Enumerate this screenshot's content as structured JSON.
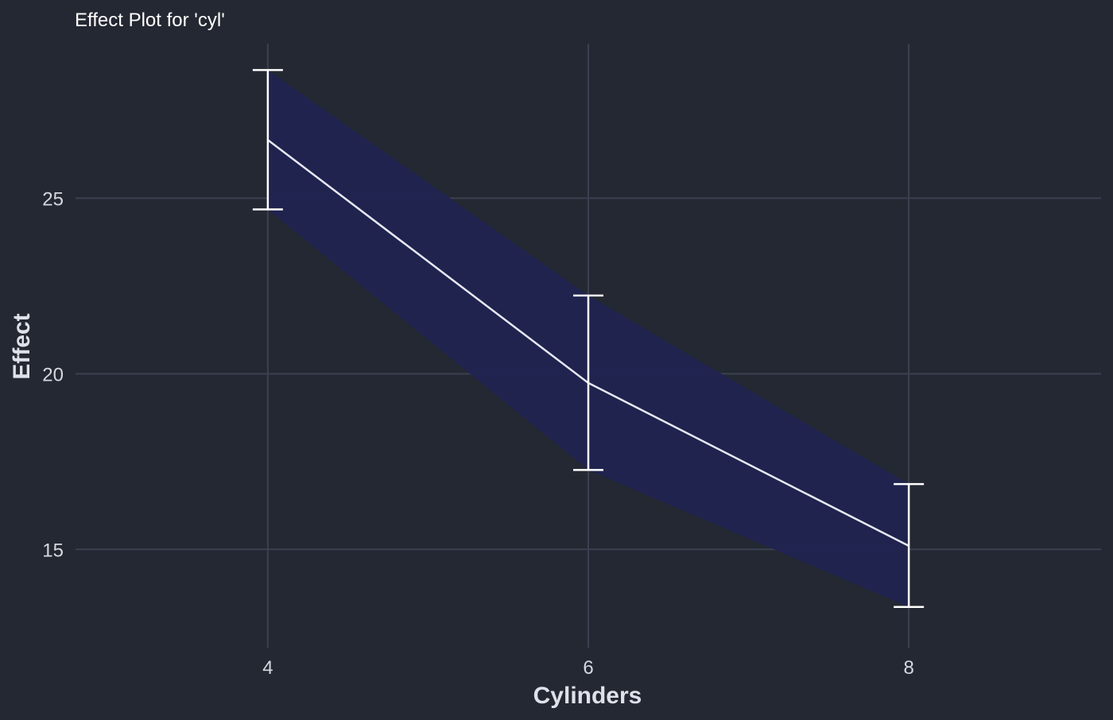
{
  "chart_data": {
    "type": "line",
    "title": "Effect Plot for 'cyl'",
    "xlabel": "Cylinders",
    "ylabel": "Effect",
    "x": [
      4,
      6,
      8
    ],
    "series": [
      {
        "values": [
          26.66,
          19.74,
          15.1
        ],
        "lower": [
          24.68,
          17.26,
          13.36
        ],
        "upper": [
          28.65,
          22.23,
          16.86
        ]
      }
    ],
    "xticks": [
      "4",
      "6",
      "8"
    ],
    "yticks": [
      "15",
      "20",
      "25"
    ],
    "xlim": [
      2.8,
      9.2
    ],
    "ylim": [
      12.2,
      29.4
    ],
    "grid": true,
    "legend": "none",
    "colors": {
      "background": "#242832",
      "grid": "#3b4052",
      "band": "#202350",
      "line": "#e8e8f5",
      "errorbar": "#ffffff"
    }
  }
}
